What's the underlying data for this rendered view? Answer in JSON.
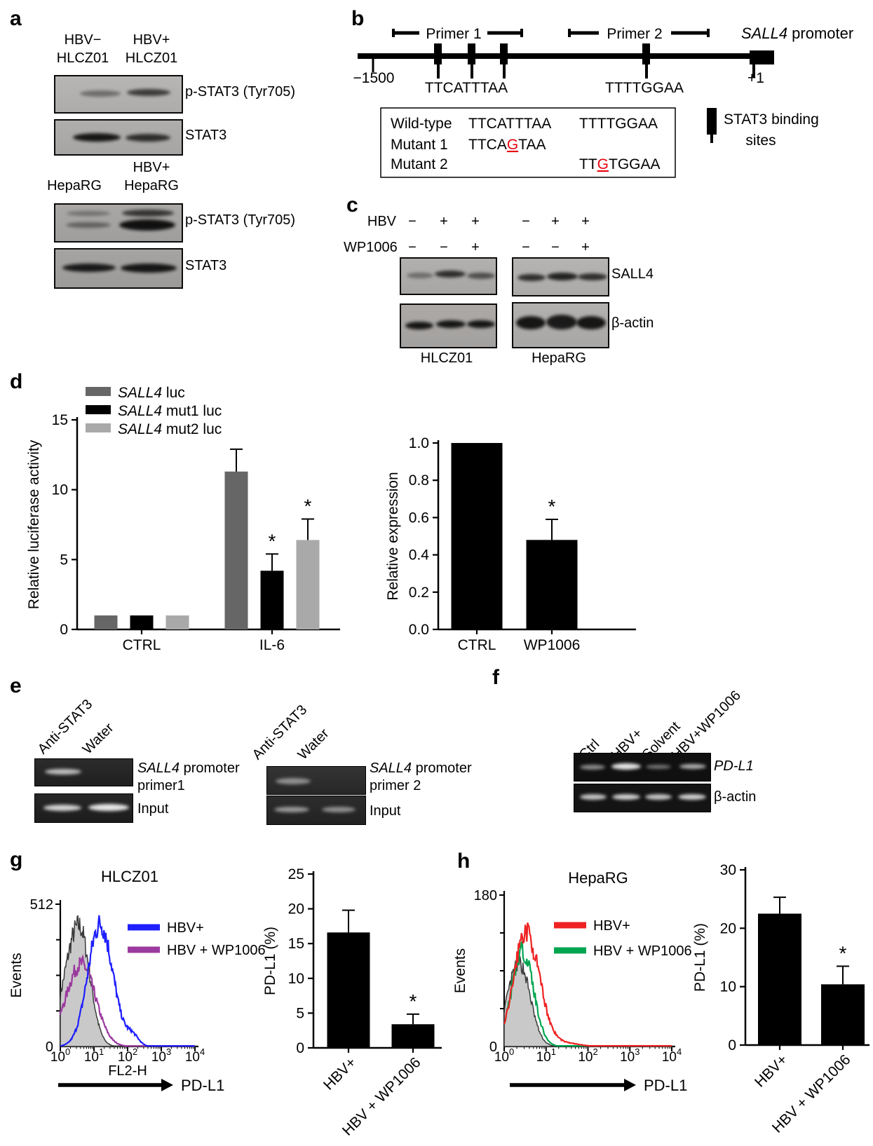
{
  "sig_marker": "*",
  "panels": {
    "a": {
      "label": "a",
      "g1c1l1": "HBV−",
      "g1c1l2": "HLCZ01",
      "g1c2l1": "HBV+",
      "g1c2l2": "HLCZ01",
      "g1row1": "p-STAT3 (Tyr705)",
      "g1row2": "STAT3",
      "g2c2l1": "HBV+",
      "g2c1l2": "HepaRG",
      "g2c2l2": "HepaRG",
      "g2row1": "p-STAT3 (Tyr705)",
      "g2row2": "STAT3"
    },
    "b": {
      "label": "b",
      "primer1": "Primer 1",
      "primer2": "Primer 2",
      "title_gene": "SALL4",
      "title_rest": " promoter",
      "pos_left": "−1500",
      "pos_right": "+1",
      "site_seq1": "TTCATTTAA",
      "site_seq2": "TTTTGGAA",
      "box": {
        "r1_name": "Wild-type",
        "r1_seq1": "TTCATTTAA",
        "r1_seq2": "TTTTGGAA",
        "r2_name": "Mutant 1",
        "r2_pre": "TTCA",
        "r2_mut": "G",
        "r2_post": "TAA",
        "r3_name": "Mutant 2",
        "r3_pre": "TT",
        "r3_mut": "G",
        "r3_post": "TGGAA"
      },
      "mut_color": "#e8000b",
      "legend_line1": "STAT3 binding",
      "legend_line2": "sites"
    },
    "c": {
      "label": "c",
      "row1_label": "HBV",
      "row1_values": [
        "−",
        "+",
        "+",
        "−",
        "+",
        "+"
      ],
      "row2_label": "WP1006",
      "row2_values": [
        "−",
        "−",
        "+",
        "−",
        "−",
        "+"
      ],
      "blot1_label": "SALL4",
      "blot2_label": "β-actin",
      "group1_label": "HLCZ01",
      "group2_label": "HepaRG"
    },
    "d": {
      "label": "d"
    },
    "e": {
      "label": "e",
      "left": {
        "lane1": "Anti-STAT3",
        "lane2": "Water",
        "row1_gene": "SALL4",
        "row1_rest": " promoter",
        "row1_line2": "primer1",
        "row2": "Input"
      },
      "right": {
        "lane1": "Anti-STAT3",
        "lane2": "Water",
        "row1_gene": "SALL4",
        "row1_rest": " promoter",
        "row1_line2": "primer 2",
        "row2": "Input"
      }
    },
    "f": {
      "label": "f",
      "lanes": [
        "Ctrl",
        "HBV+",
        "Solvent",
        "HBV+WP1006"
      ],
      "row1_label": "PD-L1",
      "row2_label": "β-actin"
    },
    "g": {
      "label": "g"
    },
    "h": {
      "label": "h"
    }
  },
  "chart_data": {
    "d_left": {
      "type": "bar",
      "ylabel": "Relative luciferase activity",
      "ylim": [
        0,
        15
      ],
      "yticks": [
        0,
        5,
        10,
        15
      ],
      "categories": [
        "CTRL",
        "IL-6"
      ],
      "series": [
        {
          "name_gene": "SALL4",
          "name_rest": " luc",
          "color": "#666666",
          "values": [
            1.0,
            11.3
          ],
          "errors": [
            0,
            1.6
          ],
          "stars": [
            false,
            false
          ]
        },
        {
          "name_gene": "SALL4",
          "name_rest": " mut1 luc",
          "color": "#000000",
          "values": [
            1.0,
            4.2
          ],
          "errors": [
            0,
            1.2
          ],
          "stars": [
            false,
            true
          ]
        },
        {
          "name_gene": "SALL4",
          "name_rest": " mut2 luc",
          "color": "#a9a9a9",
          "values": [
            1.0,
            6.4
          ],
          "errors": [
            0,
            1.5
          ],
          "stars": [
            false,
            true
          ]
        }
      ],
      "legend_position": "top-left",
      "grid": false
    },
    "d_right": {
      "type": "bar",
      "ylabel": "Relative expression",
      "ylim": [
        0,
        1.0
      ],
      "yticks": [
        0,
        0.2,
        0.4,
        0.6,
        0.8,
        1.0
      ],
      "ytick_decimals": 1,
      "categories": [
        "CTRL",
        "WP1006"
      ],
      "values": [
        1.0,
        0.48
      ],
      "errors": [
        0,
        0.11
      ],
      "stars": [
        false,
        true
      ],
      "bar_color": "#000000",
      "grid": false
    },
    "g_flow": {
      "type": "flow-histogram",
      "title": "HLCZ01",
      "ylabel": "Events",
      "ymax_label": "512",
      "y0_label": "0",
      "xlabel": "FL2-H",
      "x_arrow_label": "PD-L1",
      "xtick_base": "10",
      "xtick_exponents": [
        0,
        1,
        2,
        3,
        4
      ],
      "curves": [
        {
          "name": "control",
          "color": "#3a3a3a",
          "fill": "#c9c9c9",
          "peak_log": 0.55,
          "sigma_left": 0.42,
          "sigma_right": 0.32,
          "height": 0.85
        },
        {
          "name": "HBV + WP1006",
          "color": "#9b3a9f",
          "peak_log": 0.62,
          "sigma_left": 0.45,
          "sigma_right": 0.42,
          "height": 0.58
        },
        {
          "name": "HBV+",
          "color": "#1f1fff",
          "peak_log": 1.18,
          "sigma_left": 0.36,
          "sigma_right": 0.38,
          "height": 0.86,
          "bumps": [
            {
              "p": 2.15,
              "s": 0.18,
              "h": 0.07
            }
          ]
        }
      ],
      "legend": [
        {
          "label": "HBV+",
          "color": "#1f1fff"
        },
        {
          "label": "HBV + WP1006",
          "color": "#9b3a9f"
        }
      ]
    },
    "g_bar": {
      "type": "bar",
      "ylabel": "PD-L1 (%)",
      "ylim": [
        0,
        25
      ],
      "yticks": [
        0,
        5,
        10,
        15,
        20,
        25
      ],
      "categories": [
        "HBV+",
        "HBV + WP1006"
      ],
      "values": [
        16.6,
        3.4
      ],
      "errors": [
        3.2,
        1.45
      ],
      "stars": [
        false,
        true
      ],
      "bar_color": "#000000",
      "rotated_labels": true,
      "grid": false
    },
    "h_flow": {
      "type": "flow-histogram",
      "title": "HepaRG",
      "ylabel": "Events",
      "ymax_label": "180",
      "y0_label": "0",
      "xlabel": "",
      "x_arrow_label": "PD-L1",
      "xtick_base": "10",
      "xtick_exponents": [
        0,
        1,
        2,
        3,
        4
      ],
      "curves": [
        {
          "name": "control",
          "color": "#3a3a3a",
          "fill": "#c9c9c9",
          "peak_log": 0.36,
          "sigma_left": 0.28,
          "sigma_right": 0.26,
          "height": 0.55
        },
        {
          "name": "HBV + WP1006",
          "color": "#00a550",
          "peak_log": 0.44,
          "sigma_left": 0.26,
          "sigma_right": 0.26,
          "height": 0.63
        },
        {
          "name": "HBV+",
          "color": "#ee2222",
          "peak_log": 0.51,
          "sigma_left": 0.28,
          "sigma_right": 0.33,
          "height": 0.76,
          "bumps": [
            {
              "p": 1.5,
              "s": 0.3,
              "h": 0.02
            }
          ]
        }
      ],
      "legend": [
        {
          "label": "HBV+",
          "color": "#ee2222"
        },
        {
          "label": "HBV + WP1006",
          "color": "#00a550"
        }
      ]
    },
    "h_bar": {
      "type": "bar",
      "ylabel": "PD-L1 (%)",
      "ylim": [
        0,
        30
      ],
      "yticks": [
        0,
        10,
        20,
        30
      ],
      "categories": [
        "HBV+",
        "HBV + WP1006"
      ],
      "values": [
        22.5,
        10.4
      ],
      "errors": [
        2.8,
        3.1
      ],
      "stars": [
        false,
        true
      ],
      "bar_color": "#000000",
      "rotated_labels": true,
      "grid": false
    }
  }
}
